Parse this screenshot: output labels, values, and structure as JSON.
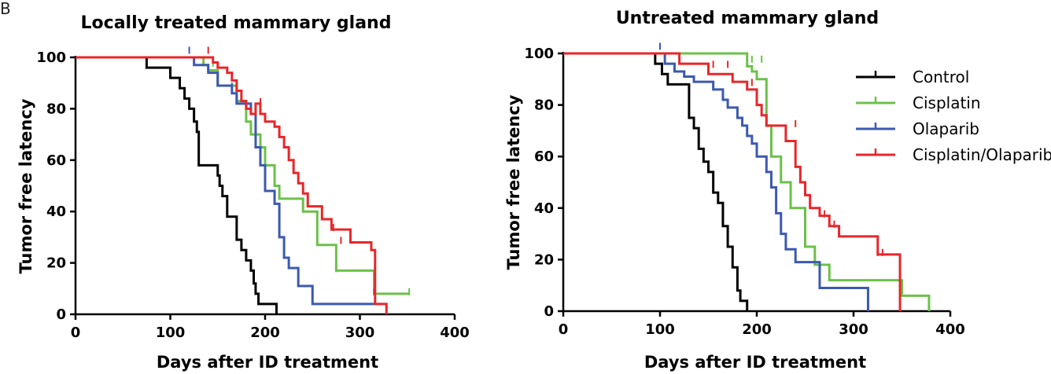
{
  "panel_label": "B",
  "colors": {
    "Control": "#000000",
    "Cisplatin": "#6cc04a",
    "Olaparib": "#3c59b0",
    "Cisplatin/Olaparib": "#e8262a"
  },
  "chart_data": [
    {
      "type": "line",
      "step": "post",
      "title": "Locally treated mammary gland",
      "xlabel": "Days after ID treatment",
      "ylabel": "Tumor free latency",
      "xlim": [
        0,
        400
      ],
      "ylim": [
        0,
        100
      ],
      "xticks": [
        "0",
        "100",
        "200",
        "300",
        "400"
      ],
      "yticks": [
        "0",
        "20",
        "40",
        "60",
        "80",
        "100"
      ],
      "grid": false,
      "series": [
        {
          "name": "Control",
          "x": [
            0,
            75,
            100,
            110,
            115,
            120,
            125,
            128,
            130,
            150,
            152,
            155,
            160,
            170,
            175,
            180,
            185,
            188,
            190,
            193,
            212
          ],
          "y": [
            100,
            96,
            92,
            88,
            84,
            80,
            75,
            71,
            58,
            54,
            50,
            46,
            38,
            29,
            25,
            21,
            17,
            12,
            8,
            4,
            0
          ],
          "censored": []
        },
        {
          "name": "Cisplatin",
          "x": [
            0,
            135,
            140,
            150,
            170,
            180,
            185,
            195,
            200,
            210,
            215,
            240,
            255,
            275,
            315,
            352
          ],
          "y": [
            100,
            97,
            95,
            89,
            83,
            75,
            70,
            65,
            58,
            50,
            45,
            40,
            27,
            17,
            8,
            8
          ],
          "censored": [
            [
              145,
              97
            ],
            [
              180,
              80
            ],
            [
              275,
              17
            ],
            [
              352,
              8
            ]
          ]
        },
        {
          "name": "Olaparib",
          "x": [
            0,
            120,
            125,
            140,
            150,
            165,
            170,
            185,
            190,
            195,
            200,
            210,
            215,
            220,
            225,
            235,
            250,
            315
          ],
          "y": [
            100,
            100,
            97,
            94,
            89,
            86,
            82,
            78,
            65,
            58,
            48,
            43,
            30,
            22,
            18,
            11,
            4,
            4
          ],
          "censored": [
            [
              120,
              102
            ],
            [
              165,
              88
            ]
          ]
        },
        {
          "name": "Cisplatin/Olaparib",
          "x": [
            0,
            140,
            145,
            150,
            160,
            165,
            170,
            175,
            180,
            185,
            190,
            195,
            200,
            210,
            215,
            220,
            225,
            230,
            235,
            240,
            245,
            260,
            270,
            290,
            312,
            316,
            328
          ],
          "y": [
            100,
            100,
            98,
            96,
            94,
            91,
            87,
            83,
            80,
            78,
            82,
            78,
            75,
            73,
            69,
            65,
            60,
            55,
            51,
            47,
            42,
            37,
            33,
            28,
            25,
            4,
            0
          ],
          "censored": [
            [
              140,
              102
            ],
            [
              195,
              82
            ],
            [
              272,
              33
            ],
            [
              280,
              28
            ],
            [
              315,
              8
            ]
          ]
        }
      ]
    },
    {
      "type": "line",
      "step": "post",
      "title": "Untreated mammary gland",
      "xlabel": "Days after ID treatment",
      "ylabel": "Tumor free latency",
      "xlim": [
        0,
        400
      ],
      "ylim": [
        0,
        100
      ],
      "xticks": [
        "0",
        "100",
        "200",
        "300",
        "400"
      ],
      "yticks": [
        "0",
        "20",
        "40",
        "60",
        "80",
        "100"
      ],
      "grid": false,
      "legend": {
        "placement": "top-right",
        "entries": [
          "Control",
          "Cisplatin",
          "Olaparib",
          "Cisplatin/Olaparib"
        ]
      },
      "series": [
        {
          "name": "Control",
          "x": [
            0,
            95,
            102,
            108,
            130,
            135,
            140,
            145,
            150,
            155,
            160,
            165,
            170,
            175,
            180,
            183,
            190
          ],
          "y": [
            100,
            96,
            92,
            88,
            75,
            71,
            63,
            58,
            54,
            46,
            42,
            33,
            25,
            17,
            8,
            4,
            0
          ],
          "censored": []
        },
        {
          "name": "Cisplatin",
          "x": [
            0,
            120,
            190,
            195,
            200,
            210,
            215,
            225,
            235,
            250,
            260,
            275,
            300,
            350,
            378
          ],
          "y": [
            100,
            100,
            95,
            93,
            90,
            72,
            60,
            50,
            40,
            25,
            18,
            12,
            12,
            6,
            0
          ],
          "censored": [
            [
              195,
              97
            ],
            [
              205,
              97
            ],
            [
              240,
              22
            ]
          ]
        },
        {
          "name": "Olaparib",
          "x": [
            0,
            100,
            105,
            115,
            125,
            135,
            155,
            165,
            170,
            180,
            185,
            190,
            195,
            200,
            210,
            215,
            220,
            225,
            230,
            240,
            265,
            315
          ],
          "y": [
            100,
            100,
            96,
            93,
            91,
            89,
            86,
            82,
            79,
            75,
            72,
            68,
            65,
            60,
            54,
            48,
            38,
            30,
            24,
            19,
            9,
            0
          ],
          "censored": [
            [
              100,
              102
            ]
          ]
        },
        {
          "name": "Cisplatin/Olaparib",
          "x": [
            0,
            110,
            120,
            150,
            175,
            190,
            200,
            205,
            210,
            220,
            230,
            240,
            245,
            250,
            255,
            265,
            275,
            285,
            300,
            325,
            345,
            348
          ],
          "y": [
            100,
            100,
            96,
            92,
            89,
            86,
            80,
            76,
            72,
            72,
            66,
            56,
            50,
            45,
            40,
            37,
            33,
            29,
            29,
            22,
            22,
            0
          ],
          "censored": [
            [
              155,
              95
            ],
            [
              170,
              95
            ],
            [
              195,
              88
            ],
            [
              240,
              72
            ],
            [
              270,
              37
            ],
            [
              280,
              33
            ],
            [
              325,
              22
            ],
            [
              330,
              22
            ]
          ]
        }
      ]
    }
  ]
}
